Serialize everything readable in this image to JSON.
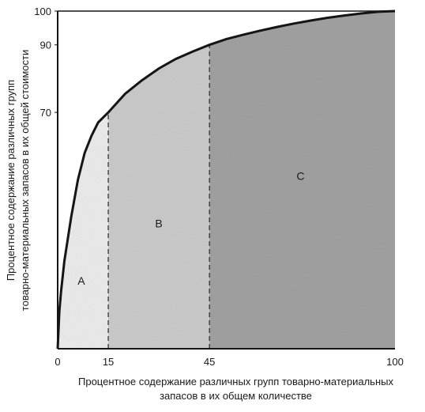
{
  "chart_data": {
    "type": "area",
    "x_axis": {
      "label_lines": [
        "Процентное содержание различных групп товарно-материальных",
        "запасов в их общем количестве"
      ],
      "ticks": [
        "0",
        "15",
        "45",
        "100"
      ],
      "range": [
        0,
        100
      ]
    },
    "y_axis": {
      "label_lines": [
        "Процентное содержание различных групп",
        "товарно-материальных запасов в их общей стоимости"
      ],
      "ticks": [
        "70",
        "90",
        "100"
      ],
      "range": [
        0,
        100
      ]
    },
    "curve": {
      "x": [
        0,
        0.5,
        1,
        2,
        4,
        6,
        8,
        10,
        12,
        15,
        20,
        25,
        30,
        35,
        40,
        45,
        50,
        55,
        60,
        65,
        70,
        75,
        80,
        85,
        90,
        95,
        100
      ],
      "y": [
        0,
        11,
        17,
        26,
        39,
        50,
        58,
        63,
        67,
        70,
        75.5,
        79.5,
        83,
        85.8,
        88,
        90,
        91.7,
        93,
        94.2,
        95.3,
        96.3,
        97.2,
        98,
        98.7,
        99.3,
        99.8,
        100
      ]
    },
    "zones": [
      {
        "label": "A",
        "x_range": [
          0,
          15
        ],
        "color": "#ececec"
      },
      {
        "label": "B",
        "x_range": [
          15,
          45
        ],
        "color": "#cbcbcb"
      },
      {
        "label": "C",
        "x_range": [
          45,
          100
        ],
        "color": "#a2a2a2"
      }
    ],
    "zone_label_positions": [
      {
        "label": "A",
        "x": 7,
        "y": 19
      },
      {
        "label": "B",
        "x": 30,
        "y": 36
      },
      {
        "label": "C",
        "x": 72,
        "y": 50
      }
    ],
    "boundaries": [
      15,
      45
    ],
    "grid": false,
    "legend": "none"
  }
}
